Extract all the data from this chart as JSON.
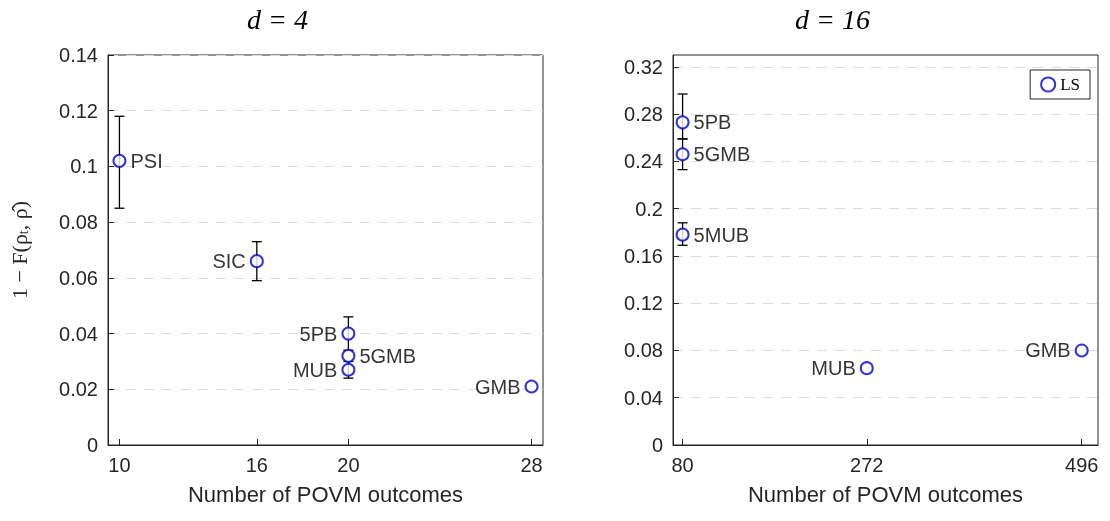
{
  "chart_data": [
    {
      "type": "scatter",
      "title": "d = 4",
      "xlabel": "Number of POVM outcomes",
      "ylabel": "1 − F(ρ$_{t}$, ρ̂)",
      "xlim": [
        9.5,
        28.5
      ],
      "xticks": [
        10,
        16,
        20,
        28
      ],
      "ylim": [
        0,
        0.14
      ],
      "yticks": [
        0,
        0.02,
        0.04,
        0.06,
        0.08,
        0.1,
        0.12,
        0.14
      ],
      "grid": "y",
      "legend": false,
      "marker": "circle",
      "series": [
        {
          "color": "#0000cc",
          "x": [
            10,
            16,
            20,
            20,
            20,
            28
          ],
          "values": [
            0.102,
            0.066,
            0.04,
            0.032,
            0.027,
            0.021
          ],
          "errors": [
            [
              0.085,
              0.118
            ],
            [
              0.059,
              0.073
            ],
            [
              0.034,
              0.046
            ],
            null,
            [
              0.024,
              0.03
            ],
            null
          ]
        }
      ],
      "annotations": [
        {
          "text": "PSI",
          "x": 10,
          "y": 0.102
        },
        {
          "text": "SIC",
          "x": 16,
          "y": 0.066
        },
        {
          "text": "5PB",
          "x": 20,
          "y": 0.04
        },
        {
          "text": "5GMB",
          "x": 20,
          "y": 0.032
        },
        {
          "text": "MUB",
          "x": 20,
          "y": 0.027
        },
        {
          "text": "GMB",
          "x": 28,
          "y": 0.021
        }
      ]
    },
    {
      "type": "scatter",
      "title": "d = 16",
      "xlabel": "Number of POVM outcomes",
      "xlim": [
        70,
        513
      ],
      "xticks": [
        80,
        272,
        496
      ],
      "ylim": [
        0,
        0.33
      ],
      "yticks": [
        0,
        0.04,
        0.08,
        0.12,
        0.16,
        0.2,
        0.24,
        0.28,
        0.32
      ],
      "grid": "y",
      "legend": "top right",
      "marker": "circle",
      "series": [
        {
          "name": "LS",
          "color": "#0000cc",
          "x": [
            80,
            80,
            80,
            272,
            496
          ],
          "values": [
            0.273,
            0.246,
            0.178,
            0.065,
            0.08
          ],
          "errors": [
            [
              0.259,
              0.297
            ],
            [
              0.233,
              0.259
            ],
            [
              0.169,
              0.188
            ],
            null,
            null
          ]
        }
      ],
      "annotations": [
        {
          "text": "5PB",
          "x": 80,
          "y": 0.273
        },
        {
          "text": "5GMB",
          "x": 80,
          "y": 0.246
        },
        {
          "text": "5MUB",
          "x": 80,
          "y": 0.178
        },
        {
          "text": "MUB",
          "x": 272,
          "y": 0.065
        },
        {
          "text": "GMB",
          "x": 496,
          "y": 0.08
        }
      ]
    }
  ]
}
